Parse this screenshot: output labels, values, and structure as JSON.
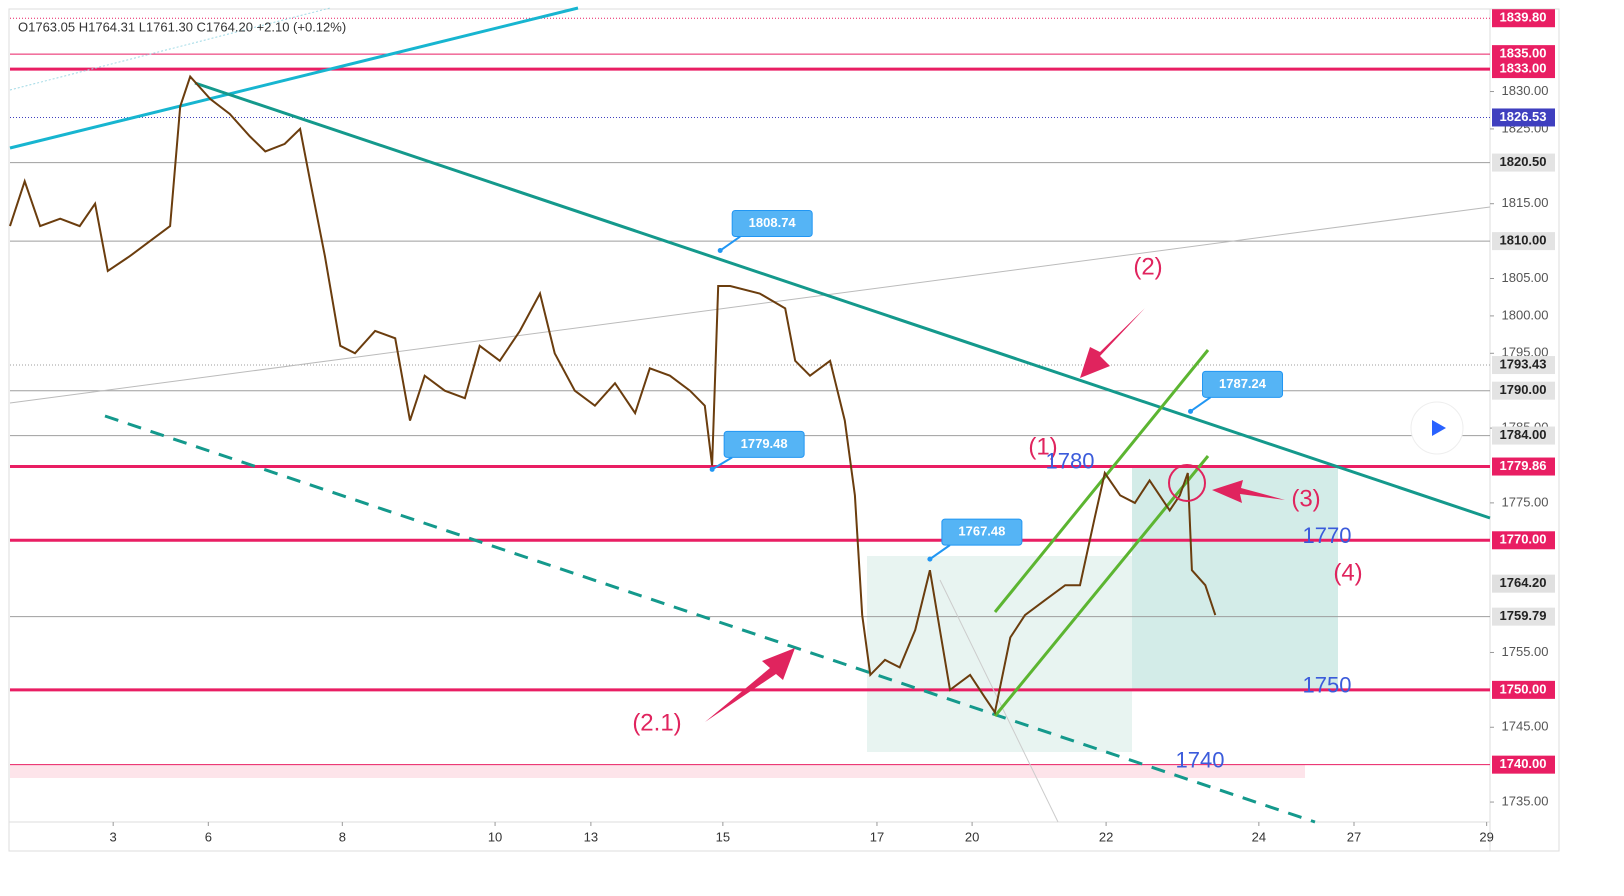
{
  "chart_data": {
    "type": "candlestick",
    "header": "O1763.05 H1764.31 L1761.30 C1764.20 +2.10 (+0.12%)",
    "series": [
      {
        "color": "#6b3d0e",
        "x": [
          0,
          0.22,
          0.45,
          0.75,
          1.04,
          1.27,
          1.46,
          1.79,
          2.09,
          2.39,
          2.54,
          2.69,
          2.99,
          3.28,
          3.58,
          3.81,
          4.1,
          4.33,
          4.48,
          4.7,
          4.93,
          5.15,
          5.45,
          5.75,
          5.97,
          6.19,
          6.49,
          6.79,
          7.01,
          7.31,
          7.61,
          7.91,
          8.13,
          8.43,
          8.73,
          9.03,
          9.33,
          9.55,
          9.85,
          10.15,
          10.37,
          10.48,
          10.57,
          10.75,
          11.19,
          11.57,
          11.72,
          11.94,
          12.24,
          12.46,
          12.61,
          12.72,
          12.84,
          13.06,
          13.28,
          13.51,
          13.73,
          13.88,
          14.03,
          14.33,
          14.55,
          14.7,
          14.93,
          15.15,
          15.45,
          15.75,
          15.97,
          16.19,
          16.34,
          16.57,
          16.79,
          17.01,
          17.31,
          17.46,
          17.58,
          17.64,
          17.84,
          17.99
        ],
        "values": [
          1812,
          1818,
          1812,
          1813,
          1812,
          1815,
          1806,
          1808,
          1810,
          1812,
          1828,
          1832,
          1829,
          1827,
          1824,
          1822,
          1823,
          1825,
          1818,
          1808,
          1796,
          1795,
          1798,
          1797,
          1786,
          1792,
          1790,
          1789,
          1796,
          1794,
          1798,
          1803,
          1795,
          1790,
          1788,
          1791,
          1787,
          1793,
          1792,
          1790,
          1788,
          1780,
          1804,
          1804,
          1803,
          1801,
          1794,
          1792,
          1794,
          1786,
          1776,
          1760,
          1752,
          1754,
          1753,
          1758,
          1766,
          1758,
          1750,
          1752,
          1749,
          1747,
          1757,
          1760,
          1762,
          1764,
          1764,
          1773,
          1779,
          1776,
          1775,
          1778,
          1774,
          1776,
          1779,
          1766,
          1764,
          1760
        ]
      }
    ],
    "xlim": [
      0,
      22.09
    ],
    "xticks": [
      {
        "value": 1.54,
        "label": "3"
      },
      {
        "value": 2.96,
        "label": "6"
      },
      {
        "value": 4.96,
        "label": "8"
      },
      {
        "value": 7.24,
        "label": "10"
      },
      {
        "value": 8.67,
        "label": "13"
      },
      {
        "value": 10.64,
        "label": "15"
      },
      {
        "value": 12.94,
        "label": "17"
      },
      {
        "value": 14.36,
        "label": "20"
      },
      {
        "value": 16.36,
        "label": "22"
      },
      {
        "value": 18.64,
        "label": "24"
      },
      {
        "value": 20.06,
        "label": "27"
      },
      {
        "value": 22.04,
        "label": "29"
      }
    ],
    "ylim": [
      1732.6,
      1840.9
    ],
    "yticks": [
      {
        "value": 1735,
        "label": "1735.00"
      },
      {
        "value": 1745,
        "label": "1745.00"
      },
      {
        "value": 1755,
        "label": "1755.00"
      },
      {
        "value": 1775,
        "label": "1775.00"
      },
      {
        "value": 1785,
        "label": "1785.00"
      },
      {
        "value": 1795,
        "label": "1795.00"
      },
      {
        "value": 1800,
        "label": "1800.00"
      },
      {
        "value": 1805,
        "label": "1805.00"
      },
      {
        "value": 1815,
        "label": "1815.00"
      },
      {
        "value": 1825,
        "label": "1825.00"
      },
      {
        "value": 1830,
        "label": "1830.00"
      }
    ],
    "price_lines": [
      {
        "value": 1839.8,
        "label": "1839.80",
        "color": "#e91e63",
        "style": "dotted"
      },
      {
        "value": 1835,
        "label": "1835.00",
        "color": "#e91e63",
        "style": "thin"
      },
      {
        "value": 1833,
        "label": "1833.00",
        "color": "#e91e63",
        "style": "thick"
      },
      {
        "value": 1826.53,
        "label": "1826.53",
        "color": "#3f3fbf",
        "style": "dotted"
      },
      {
        "value": 1820.5,
        "label": "1820.50",
        "color": "#9e9e9e",
        "style": "thin"
      },
      {
        "value": 1810,
        "label": "1810.00",
        "color": "#9e9e9e",
        "style": "thin"
      },
      {
        "value": 1793.43,
        "label": "1793.43",
        "color": "#9e9e9e",
        "style": "dotted"
      },
      {
        "value": 1790,
        "label": "1790.00",
        "color": "#9e9e9e",
        "style": "thin"
      },
      {
        "value": 1784,
        "label": "1784.00",
        "color": "#9e9e9e",
        "style": "thin"
      },
      {
        "value": 1779.86,
        "label": "1779.86",
        "color": "#e91e63",
        "style": "thick"
      },
      {
        "value": 1770,
        "label": "1770.00",
        "color": "#e91e63",
        "style": "thick"
      },
      {
        "value": 1764.2,
        "label": "1764.20",
        "color": "#e0e0e0",
        "style": "none"
      },
      {
        "value": 1759.79,
        "label": "1759.79",
        "color": "#9e9e9e",
        "style": "thin"
      },
      {
        "value": 1750,
        "label": "1750.00",
        "color": "#e91e63",
        "style": "thick"
      },
      {
        "value": 1740,
        "label": "1740.00",
        "color": "#e91e63",
        "style": "thin"
      }
    ],
    "callouts": [
      {
        "x": 10.6,
        "value": 1808.74
      },
      {
        "x": 10.48,
        "value": 1779.48
      },
      {
        "x": 13.73,
        "value": 1767.48
      },
      {
        "x": 17.62,
        "value": 1787.24
      }
    ],
    "annotations": [
      "(1)",
      "(2)",
      "(2.1)",
      "(3)",
      "(4)"
    ],
    "level_labels": [
      1780,
      1770,
      1750,
      1740
    ]
  }
}
